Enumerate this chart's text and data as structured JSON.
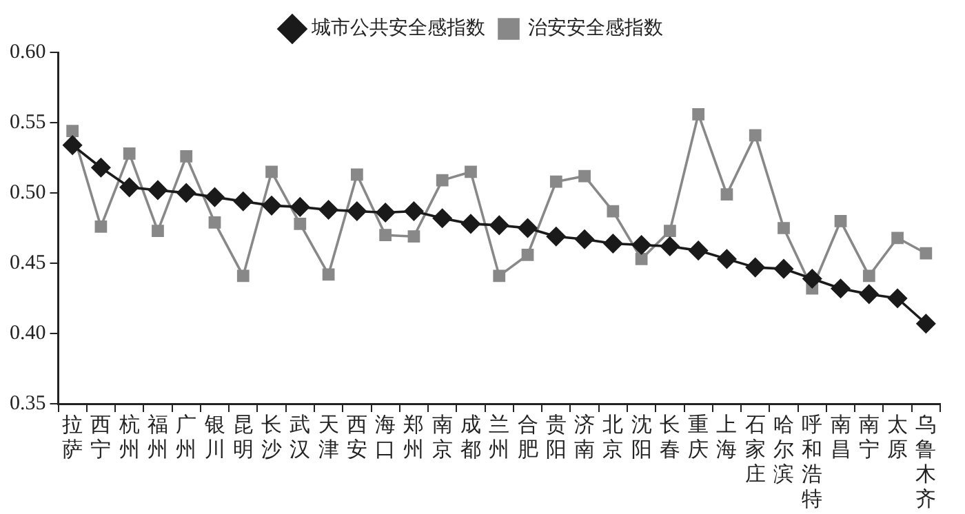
{
  "chart_data": {
    "type": "line",
    "categories": [
      "拉萨",
      "西宁",
      "杭州",
      "福州",
      "广州",
      "银川",
      "昆明",
      "长沙",
      "武汉",
      "天津",
      "西安",
      "海口",
      "郑州",
      "南京",
      "成都",
      "兰州",
      "合肥",
      "贵阳",
      "济南",
      "北京",
      "沈阳",
      "长春",
      "重庆",
      "上海",
      "石家庄",
      "哈尔滨",
      "呼和浩特",
      "南昌",
      "南宁",
      "太原",
      "乌鲁木齐"
    ],
    "series": [
      {
        "name": "城市公共安全感指数",
        "color": "#1a1a1a",
        "marker": "diamond",
        "values": [
          0.534,
          0.518,
          0.504,
          0.502,
          0.5,
          0.497,
          0.494,
          0.491,
          0.49,
          0.488,
          0.487,
          0.486,
          0.487,
          0.482,
          0.478,
          0.477,
          0.475,
          0.469,
          0.467,
          0.464,
          0.463,
          0.462,
          0.459,
          0.453,
          0.447,
          0.446,
          0.439,
          0.432,
          0.428,
          0.425,
          0.407
        ]
      },
      {
        "name": "治安安全感指数",
        "color": "#888888",
        "marker": "square",
        "values": [
          0.544,
          0.476,
          0.528,
          0.473,
          0.526,
          0.479,
          0.441,
          0.515,
          0.478,
          0.442,
          0.513,
          0.47,
          0.469,
          0.509,
          0.515,
          0.441,
          0.456,
          0.508,
          0.512,
          0.487,
          0.453,
          0.473,
          0.556,
          0.499,
          0.541,
          0.475,
          0.432,
          0.48,
          0.441,
          0.468,
          0.457
        ]
      }
    ],
    "ylim": [
      0.35,
      0.6
    ],
    "yticks": [
      0.35,
      {
        "value": 0.4,
        "label": "0.40"
      },
      0.45,
      {
        "value": 0.5,
        "label": "0.50"
      },
      0.55,
      {
        "value": 0.6,
        "label": "0.60"
      }
    ],
    "grid": false,
    "legend": "top",
    "line_style": "solid"
  }
}
